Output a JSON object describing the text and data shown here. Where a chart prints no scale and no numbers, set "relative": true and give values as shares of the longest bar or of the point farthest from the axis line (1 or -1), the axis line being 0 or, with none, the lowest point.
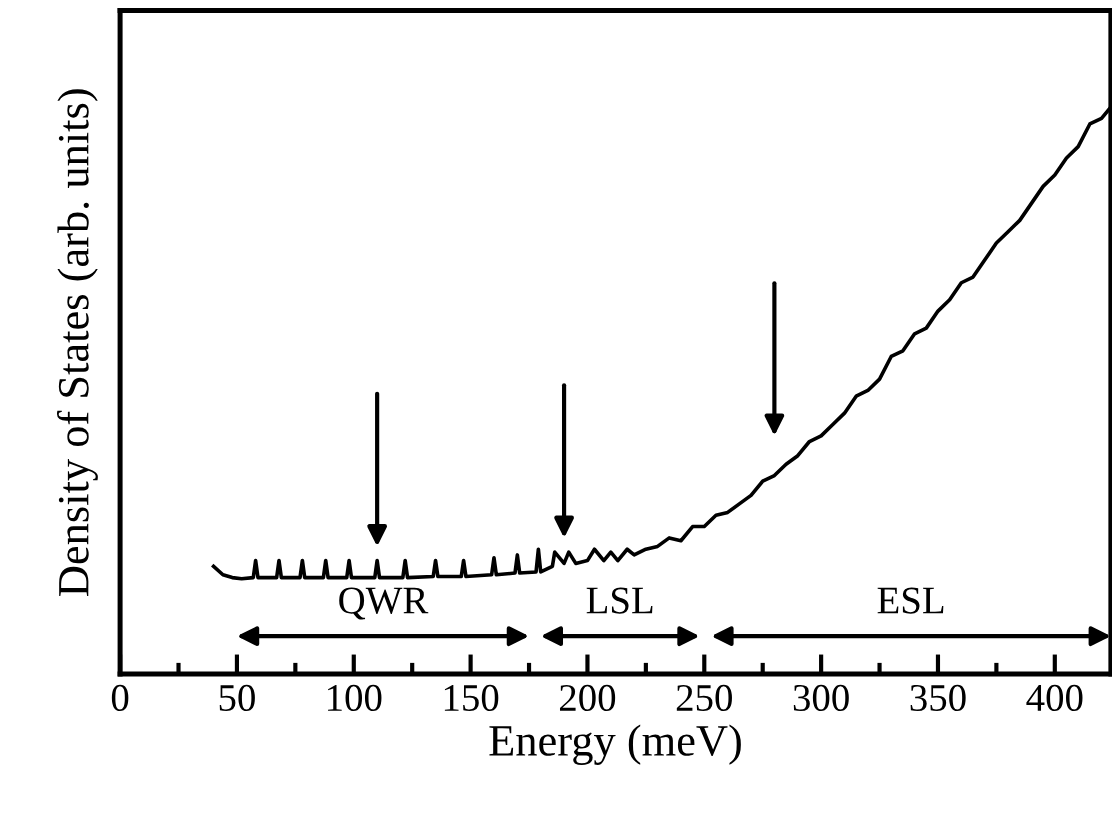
{
  "chart_data": {
    "type": "line",
    "relative": true,
    "xlabel": "Energy (meV)",
    "ylabel": "Density of States (arb. units)",
    "xlim": [
      0,
      424
    ],
    "xticks": [
      0,
      {
        "value": 25,
        "label": null
      },
      50,
      {
        "value": 75,
        "label": null
      },
      100,
      {
        "value": 125,
        "label": null
      },
      150,
      {
        "value": 175,
        "label": null
      },
      200,
      {
        "value": 225,
        "label": null
      },
      250,
      {
        "value": 275,
        "label": null
      },
      300,
      {
        "value": 325,
        "label": null
      },
      350,
      {
        "value": 375,
        "label": null
      },
      400
    ],
    "tick_labels": "x",
    "grid": false,
    "legend": false,
    "marker": "none",
    "line_style": "solid",
    "series": [
      {
        "color": "#000000",
        "x": [
          40,
          44,
          48,
          52,
          57,
          58,
          59,
          67,
          68,
          69,
          77,
          78,
          79,
          87,
          88,
          89,
          97,
          98,
          99,
          109,
          110,
          111,
          121,
          122,
          123,
          134,
          135,
          136,
          146,
          147,
          148,
          159,
          160,
          161,
          169,
          170,
          171,
          178,
          179,
          180,
          185,
          186,
          190,
          192,
          195,
          200,
          203,
          207,
          210,
          213,
          217,
          220,
          225,
          230,
          235,
          240,
          245,
          250,
          255,
          260,
          265,
          270,
          275,
          280,
          285,
          290,
          295,
          300,
          305,
          310,
          315,
          320,
          325,
          330,
          335,
          340,
          345,
          350,
          355,
          360,
          365,
          370,
          375,
          380,
          385,
          390,
          395,
          400,
          405,
          410,
          415,
          420,
          424
        ],
        "values": [
          0.19,
          0.175,
          0.17,
          0.168,
          0.17,
          0.2,
          0.17,
          0.17,
          0.2,
          0.17,
          0.17,
          0.2,
          0.17,
          0.17,
          0.2,
          0.17,
          0.17,
          0.2,
          0.17,
          0.17,
          0.2,
          0.17,
          0.17,
          0.2,
          0.17,
          0.172,
          0.2,
          0.172,
          0.172,
          0.2,
          0.172,
          0.175,
          0.205,
          0.175,
          0.178,
          0.21,
          0.178,
          0.18,
          0.22,
          0.18,
          0.19,
          0.215,
          0.195,
          0.215,
          0.195,
          0.2,
          0.22,
          0.2,
          0.215,
          0.2,
          0.22,
          0.21,
          0.22,
          0.225,
          0.24,
          0.235,
          0.26,
          0.26,
          0.28,
          0.285,
          0.3,
          0.315,
          0.34,
          0.35,
          0.37,
          0.385,
          0.41,
          0.42,
          0.44,
          0.46,
          0.49,
          0.5,
          0.52,
          0.56,
          0.57,
          0.6,
          0.61,
          0.64,
          0.66,
          0.69,
          0.7,
          0.73,
          0.76,
          0.78,
          0.8,
          0.83,
          0.86,
          0.88,
          0.91,
          0.93,
          0.97,
          0.98,
          1.0
        ]
      }
    ],
    "annotations": [
      "QWR",
      "LSL",
      "ESL"
    ]
  }
}
